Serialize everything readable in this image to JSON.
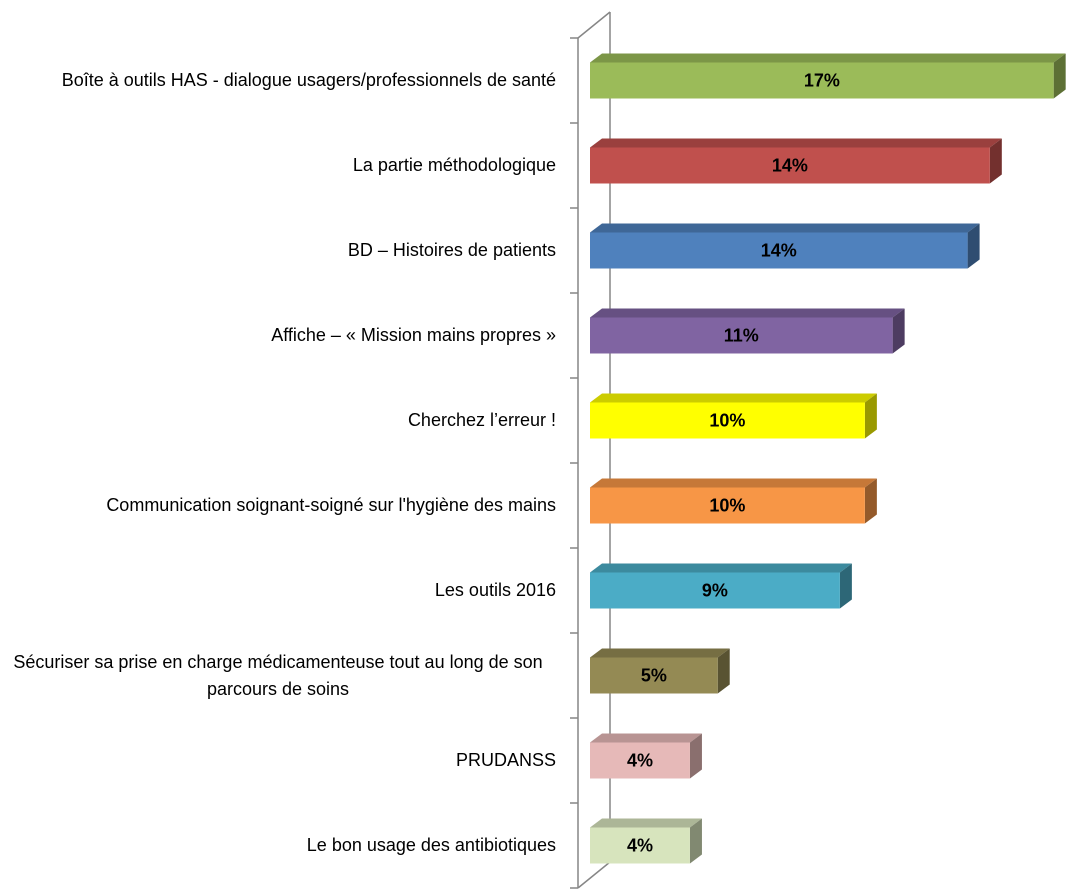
{
  "chart_data": {
    "type": "bar3d_horizontal",
    "categories": [
      "Boîte à outils HAS - dialogue usagers/professionnels de santé",
      "La partie méthodologique",
      "BD – Histoires de patients",
      "Affiche – « Mission mains propres »",
      "Cherchez l’erreur !",
      "Communication soignant-soigné sur l'hygiène des mains",
      "Les outils 2016",
      "Sécuriser sa prise en charge médicamenteuse tout au long de son parcours de soins",
      "PRUDANSS",
      "Le bon usage des antibiotiques"
    ],
    "values": [
      16.7,
      14.4,
      13.6,
      10.9,
      9.9,
      9.9,
      9.0,
      4.6,
      3.6,
      3.6
    ],
    "value_labels": [
      "17%",
      "14%",
      "14%",
      "11%",
      "10%",
      "10%",
      "9%",
      "5%",
      "4%",
      "4%"
    ],
    "colors": [
      "#9bbb59",
      "#c0504d",
      "#4f81bd",
      "#8064a2",
      "#ffff00",
      "#f79646",
      "#4bacc6",
      "#948a54",
      "#e6b9b8",
      "#d7e4bd"
    ],
    "xlim": [
      0,
      17
    ]
  }
}
